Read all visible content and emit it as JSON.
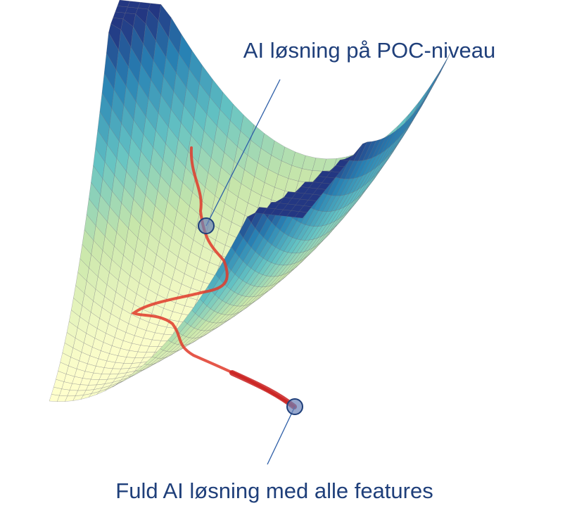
{
  "labels": {
    "top": "AI løsning på POC-niveau",
    "bottom": "Fuld AI løsning med alle features"
  }
}
